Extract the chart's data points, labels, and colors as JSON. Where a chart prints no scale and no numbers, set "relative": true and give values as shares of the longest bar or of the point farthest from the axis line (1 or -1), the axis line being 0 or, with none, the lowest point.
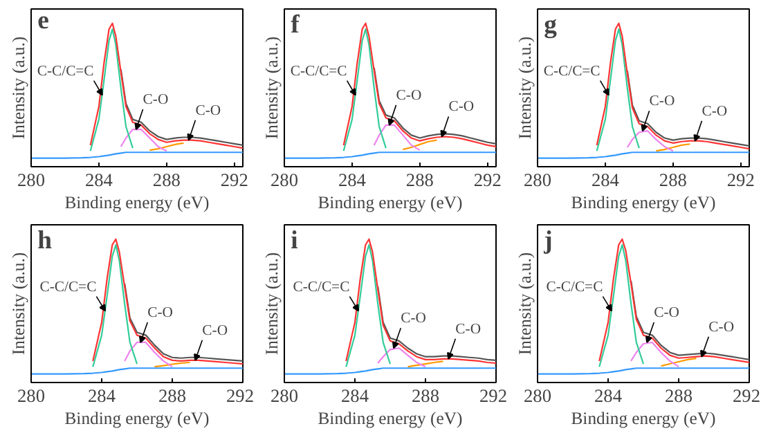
{
  "chart_data": [
    {
      "type": "line",
      "relative": true,
      "xlabel": "Binding energy (eV)",
      "ylabel": "Intensity (a.u.)",
      "xlim": [
        280,
        292.5
      ],
      "xticks": [
        280,
        284,
        288,
        292
      ],
      "tick_labels": "x",
      "grid": false,
      "x": [
        280,
        281,
        282,
        283,
        283.5,
        284,
        284.3,
        284.6,
        284.8,
        285,
        285.3,
        285.6,
        286,
        286.5,
        287,
        287.5,
        288,
        288.5,
        289,
        289.5,
        290,
        290.5,
        291,
        291.5,
        292,
        292.5
      ],
      "annotations": [
        "e",
        {
          "text": "C-C/C=C",
          "x": 284.2,
          "y": 0.5
        },
        {
          "text": "C-O",
          "x": 286.2,
          "y": 0.26
        },
        {
          "text": "C-O",
          "x": 289.3,
          "y": 0.185
        }
      ],
      "series": [
        {
          "color": "#ff9900",
          "values": [
            null,
            null,
            null,
            null,
            null,
            null,
            null,
            null,
            null,
            null,
            null,
            null,
            null,
            null,
            0.115,
            0.125,
            0.14,
            0.155,
            0.165,
            null,
            null,
            null,
            null,
            null,
            null,
            null
          ]
        },
        {
          "color": "#ee82ee",
          "values": [
            null,
            null,
            null,
            null,
            null,
            null,
            null,
            null,
            null,
            null,
            0.14,
            0.2,
            0.26,
            0.26,
            0.2,
            0.14,
            0.11,
            null,
            null,
            null,
            null,
            null,
            null,
            null,
            null,
            null
          ]
        },
        {
          "color": "#33cc99",
          "values": [
            null,
            null,
            null,
            null,
            0.11,
            0.33,
            0.6,
            0.88,
            0.96,
            0.85,
            0.55,
            0.28,
            0.13,
            null,
            null,
            null,
            null,
            null,
            null,
            null,
            null,
            null,
            null,
            null,
            null,
            null
          ]
        },
        {
          "color": "#555555",
          "values": [
            null,
            null,
            null,
            null,
            null,
            null,
            null,
            null,
            null,
            null,
            0.68,
            0.44,
            0.33,
            0.31,
            0.25,
            0.21,
            0.19,
            0.2,
            0.205,
            0.205,
            0.2,
            0.19,
            0.18,
            0.17,
            0.16,
            0.15
          ]
        },
        {
          "color": "#ff3333",
          "values": [
            null,
            null,
            null,
            null,
            0.15,
            0.42,
            0.72,
            0.96,
            1.0,
            0.91,
            0.66,
            0.42,
            0.31,
            0.29,
            0.23,
            0.19,
            0.17,
            0.18,
            0.185,
            0.185,
            0.18,
            0.17,
            0.16,
            0.15,
            0.14,
            0.13
          ]
        },
        {
          "color": "#3399ff",
          "values": [
            0.06,
            0.06,
            0.06,
            0.062,
            0.065,
            0.07,
            0.075,
            0.08,
            0.085,
            0.09,
            0.095,
            0.1,
            0.1,
            0.1,
            0.1,
            0.1,
            0.1,
            0.1,
            0.1,
            0.1,
            0.1,
            0.1,
            0.1,
            0.1,
            0.1,
            0.1
          ]
        }
      ]
    },
    {
      "type": "line",
      "relative": true,
      "xlabel": "Binding energy (eV)",
      "ylabel": "Intensity (a.u.)",
      "xlim": [
        280,
        292.5
      ],
      "xticks": [
        280,
        284,
        288,
        292
      ],
      "tick_labels": "x",
      "grid": false,
      "x": [
        280,
        281,
        282,
        283,
        283.5,
        284,
        284.3,
        284.6,
        284.8,
        285,
        285.3,
        285.6,
        286,
        286.5,
        287,
        287.5,
        288,
        288.5,
        289,
        289.5,
        290,
        290.5,
        291,
        291.5,
        292,
        292.5
      ],
      "annotations": [
        "f",
        {
          "text": "C-C/C=C",
          "x": 284.2,
          "y": 0.5
        },
        {
          "text": "C-O",
          "x": 286.2,
          "y": 0.29
        },
        {
          "text": "C-O",
          "x": 289.3,
          "y": 0.21
        }
      ],
      "series": [
        {
          "color": "#ff9900",
          "values": [
            null,
            null,
            null,
            null,
            null,
            null,
            null,
            null,
            null,
            null,
            null,
            null,
            null,
            null,
            0.12,
            0.135,
            0.155,
            0.175,
            0.185,
            null,
            null,
            null,
            null,
            null,
            null,
            null
          ]
        },
        {
          "color": "#ee82ee",
          "values": [
            null,
            null,
            null,
            null,
            null,
            null,
            null,
            null,
            null,
            null,
            0.15,
            0.22,
            0.29,
            0.29,
            0.22,
            0.15,
            0.115,
            null,
            null,
            null,
            null,
            null,
            null,
            null,
            null,
            null
          ]
        },
        {
          "color": "#33cc99",
          "values": [
            null,
            null,
            null,
            null,
            0.11,
            0.33,
            0.6,
            0.88,
            0.96,
            0.85,
            0.55,
            0.28,
            0.13,
            null,
            null,
            null,
            null,
            null,
            null,
            null,
            null,
            null,
            null,
            null,
            null,
            null
          ]
        },
        {
          "color": "#555555",
          "values": [
            null,
            null,
            null,
            null,
            null,
            null,
            null,
            null,
            null,
            null,
            0.69,
            0.46,
            0.36,
            0.34,
            0.27,
            0.22,
            0.2,
            0.215,
            0.225,
            0.23,
            0.225,
            0.215,
            0.2,
            0.185,
            0.17,
            0.16
          ]
        },
        {
          "color": "#ff3333",
          "values": [
            null,
            null,
            null,
            null,
            0.15,
            0.42,
            0.72,
            0.96,
            1.0,
            0.91,
            0.67,
            0.44,
            0.34,
            0.32,
            0.25,
            0.2,
            0.18,
            0.195,
            0.205,
            0.21,
            0.205,
            0.195,
            0.18,
            0.165,
            0.15,
            0.14
          ]
        },
        {
          "color": "#3399ff",
          "values": [
            0.06,
            0.06,
            0.06,
            0.062,
            0.065,
            0.07,
            0.075,
            0.08,
            0.085,
            0.09,
            0.095,
            0.1,
            0.1,
            0.1,
            0.1,
            0.1,
            0.1,
            0.1,
            0.1,
            0.1,
            0.1,
            0.1,
            0.1,
            0.1,
            0.1,
            0.1
          ]
        }
      ]
    },
    {
      "type": "line",
      "relative": true,
      "xlabel": "Binding energy (eV)",
      "ylabel": "Intensity (a.u.)",
      "xlim": [
        280,
        292.5
      ],
      "xticks": [
        280,
        284,
        288,
        292
      ],
      "tick_labels": "x",
      "grid": false,
      "x": [
        280,
        281,
        282,
        283,
        283.5,
        284,
        284.3,
        284.6,
        284.8,
        285,
        285.3,
        285.6,
        286,
        286.5,
        287,
        287.5,
        288,
        288.5,
        289,
        289.5,
        290,
        290.5,
        291,
        291.5,
        292,
        292.5
      ],
      "annotations": [
        "g",
        {
          "text": "C-C/C=C",
          "x": 284.2,
          "y": 0.5
        },
        {
          "text": "C-O",
          "x": 286.2,
          "y": 0.25
        },
        {
          "text": "C-O",
          "x": 289.3,
          "y": 0.18
        }
      ],
      "series": [
        {
          "color": "#ff9900",
          "values": [
            null,
            null,
            null,
            null,
            null,
            null,
            null,
            null,
            null,
            null,
            null,
            null,
            null,
            null,
            0.11,
            0.12,
            0.135,
            0.15,
            0.158,
            null,
            null,
            null,
            null,
            null,
            null,
            null
          ]
        },
        {
          "color": "#ee82ee",
          "values": [
            null,
            null,
            null,
            null,
            null,
            null,
            null,
            null,
            null,
            null,
            0.135,
            0.19,
            0.24,
            0.25,
            0.19,
            0.14,
            0.11,
            null,
            null,
            null,
            null,
            null,
            null,
            null,
            null,
            null
          ]
        },
        {
          "color": "#33cc99",
          "values": [
            null,
            null,
            null,
            null,
            0.11,
            0.33,
            0.6,
            0.88,
            0.96,
            0.85,
            0.55,
            0.28,
            0.13,
            null,
            null,
            null,
            null,
            null,
            null,
            null,
            null,
            null,
            null,
            null,
            null,
            null
          ]
        },
        {
          "color": "#555555",
          "values": [
            null,
            null,
            null,
            null,
            null,
            null,
            null,
            null,
            null,
            null,
            0.67,
            0.43,
            0.32,
            0.3,
            0.24,
            0.2,
            0.185,
            0.195,
            0.2,
            0.2,
            0.195,
            0.185,
            0.175,
            0.165,
            0.155,
            0.145
          ]
        },
        {
          "color": "#ff3333",
          "values": [
            null,
            null,
            null,
            null,
            0.15,
            0.42,
            0.72,
            0.96,
            1.0,
            0.91,
            0.65,
            0.41,
            0.3,
            0.28,
            0.22,
            0.18,
            0.165,
            0.175,
            0.18,
            0.18,
            0.175,
            0.165,
            0.155,
            0.145,
            0.135,
            0.125
          ]
        },
        {
          "color": "#3399ff",
          "values": [
            0.06,
            0.06,
            0.06,
            0.062,
            0.065,
            0.07,
            0.075,
            0.08,
            0.085,
            0.09,
            0.095,
            0.1,
            0.1,
            0.1,
            0.1,
            0.1,
            0.1,
            0.1,
            0.1,
            0.1,
            0.1,
            0.1,
            0.1,
            0.1,
            0.1,
            0.1
          ]
        }
      ]
    },
    {
      "type": "line",
      "relative": true,
      "xlabel": "Binding energy (eV)",
      "ylabel": "Intensity (a.u.)",
      "xlim": [
        280,
        292
      ],
      "xticks": [
        280,
        284,
        288,
        292
      ],
      "tick_labels": "x",
      "grid": false,
      "x": [
        280,
        281,
        282,
        283,
        283.5,
        284,
        284.3,
        284.6,
        284.8,
        285,
        285.3,
        285.6,
        286,
        286.5,
        287,
        287.5,
        288,
        288.5,
        289,
        289.5,
        290,
        290.5,
        291,
        291.5,
        292
      ],
      "annotations": [
        "h",
        {
          "text": "C-C/C=C",
          "x": 284.2,
          "y": 0.5
        },
        {
          "text": "C-O",
          "x": 286.2,
          "y": 0.28
        },
        {
          "text": "C-O",
          "x": 289.3,
          "y": 0.155
        }
      ],
      "series": [
        {
          "color": "#ff9900",
          "values": [
            null,
            null,
            null,
            null,
            null,
            null,
            null,
            null,
            null,
            null,
            null,
            null,
            null,
            null,
            0.11,
            0.118,
            0.128,
            0.135,
            0.14,
            null,
            null,
            null,
            null,
            null,
            null
          ]
        },
        {
          "color": "#ee82ee",
          "values": [
            null,
            null,
            null,
            null,
            null,
            null,
            null,
            null,
            null,
            null,
            0.15,
            0.22,
            0.28,
            0.28,
            0.21,
            0.15,
            0.11,
            null,
            null,
            null,
            null,
            null,
            null,
            null,
            null
          ]
        },
        {
          "color": "#33cc99",
          "values": [
            null,
            null,
            null,
            null,
            0.11,
            0.33,
            0.6,
            0.88,
            0.96,
            0.85,
            0.55,
            0.28,
            0.13,
            null,
            null,
            null,
            null,
            null,
            null,
            null,
            null,
            null,
            null,
            null,
            null
          ]
        },
        {
          "color": "#555555",
          "values": [
            null,
            null,
            null,
            null,
            null,
            null,
            null,
            null,
            null,
            null,
            0.69,
            0.45,
            0.35,
            0.33,
            0.26,
            0.2,
            0.175,
            0.17,
            0.175,
            0.175,
            0.17,
            0.165,
            0.16,
            0.155,
            0.15
          ]
        },
        {
          "color": "#ff3333",
          "values": [
            null,
            null,
            null,
            null,
            0.15,
            0.42,
            0.72,
            0.96,
            1.0,
            0.91,
            0.67,
            0.43,
            0.33,
            0.31,
            0.24,
            0.18,
            0.155,
            0.15,
            0.155,
            0.155,
            0.15,
            0.145,
            0.14,
            0.135,
            0.13
          ]
        },
        {
          "color": "#3399ff",
          "values": [
            0.06,
            0.06,
            0.06,
            0.062,
            0.065,
            0.07,
            0.075,
            0.08,
            0.085,
            0.09,
            0.095,
            0.1,
            0.1,
            0.1,
            0.1,
            0.1,
            0.1,
            0.1,
            0.1,
            0.1,
            0.1,
            0.1,
            0.1,
            0.1,
            0.1
          ]
        }
      ]
    },
    {
      "type": "line",
      "relative": true,
      "xlabel": "Binding energy (eV)",
      "ylabel": "Intensity (a.u.)",
      "xlim": [
        280,
        292
      ],
      "xticks": [
        280,
        284,
        288,
        292
      ],
      "tick_labels": "x",
      "grid": false,
      "x": [
        280,
        281,
        282,
        283,
        283.5,
        284,
        284.3,
        284.6,
        284.8,
        285,
        285.3,
        285.6,
        286,
        286.5,
        287,
        287.5,
        288,
        288.5,
        289,
        289.5,
        290,
        290.5,
        291,
        291.5,
        292
      ],
      "annotations": [
        "i",
        {
          "text": "C-C/C=C",
          "x": 284.2,
          "y": 0.5
        },
        {
          "text": "C-O",
          "x": 286.2,
          "y": 0.24
        },
        {
          "text": "C-O",
          "x": 289.3,
          "y": 0.165
        }
      ],
      "series": [
        {
          "color": "#ff9900",
          "values": [
            null,
            null,
            null,
            null,
            null,
            null,
            null,
            null,
            null,
            null,
            null,
            null,
            null,
            null,
            0.11,
            0.12,
            0.13,
            0.14,
            0.148,
            null,
            null,
            null,
            null,
            null,
            null
          ]
        },
        {
          "color": "#ee82ee",
          "values": [
            null,
            null,
            null,
            null,
            null,
            null,
            null,
            null,
            null,
            null,
            0.135,
            0.18,
            0.23,
            0.24,
            0.19,
            0.14,
            0.11,
            null,
            null,
            null,
            null,
            null,
            null,
            null,
            null
          ]
        },
        {
          "color": "#33cc99",
          "values": [
            null,
            null,
            null,
            null,
            0.11,
            0.33,
            0.6,
            0.88,
            0.96,
            0.85,
            0.55,
            0.28,
            0.13,
            null,
            null,
            null,
            null,
            null,
            null,
            null,
            null,
            null,
            null,
            null,
            null
          ]
        },
        {
          "color": "#555555",
          "values": [
            null,
            null,
            null,
            null,
            null,
            null,
            null,
            null,
            null,
            null,
            0.67,
            0.42,
            0.31,
            0.29,
            0.24,
            0.2,
            0.18,
            0.18,
            0.185,
            0.185,
            0.18,
            0.175,
            0.17,
            0.16,
            0.155
          ]
        },
        {
          "color": "#ff3333",
          "values": [
            null,
            null,
            null,
            null,
            0.15,
            0.42,
            0.72,
            0.96,
            1.0,
            0.91,
            0.65,
            0.4,
            0.29,
            0.27,
            0.22,
            0.18,
            0.16,
            0.16,
            0.165,
            0.165,
            0.16,
            0.155,
            0.15,
            0.14,
            0.135
          ]
        },
        {
          "color": "#3399ff",
          "values": [
            0.06,
            0.06,
            0.06,
            0.062,
            0.065,
            0.07,
            0.075,
            0.08,
            0.085,
            0.09,
            0.095,
            0.1,
            0.1,
            0.1,
            0.1,
            0.1,
            0.1,
            0.1,
            0.1,
            0.1,
            0.1,
            0.1,
            0.1,
            0.1,
            0.1
          ]
        }
      ]
    },
    {
      "type": "line",
      "relative": true,
      "xlabel": "Binding energy (eV)",
      "ylabel": "Intensity (a.u.)",
      "xlim": [
        280,
        292
      ],
      "xticks": [
        280,
        284,
        288,
        292
      ],
      "tick_labels": "x",
      "grid": false,
      "x": [
        280,
        281,
        282,
        283,
        283.5,
        284,
        284.3,
        284.6,
        284.8,
        285,
        285.3,
        285.6,
        286,
        286.5,
        287,
        287.5,
        288,
        288.5,
        289,
        289.5,
        290,
        290.5,
        291,
        291.5,
        292
      ],
      "annotations": [
        "j",
        {
          "text": "C-C/C=C",
          "x": 284.2,
          "y": 0.5
        },
        {
          "text": "C-O",
          "x": 286.2,
          "y": 0.28
        },
        {
          "text": "C-O",
          "x": 289.3,
          "y": 0.18
        }
      ],
      "series": [
        {
          "color": "#ff9900",
          "values": [
            null,
            null,
            null,
            null,
            null,
            null,
            null,
            null,
            null,
            null,
            null,
            null,
            null,
            null,
            0.115,
            0.13,
            0.145,
            0.16,
            0.168,
            null,
            null,
            null,
            null,
            null,
            null
          ]
        },
        {
          "color": "#ee82ee",
          "values": [
            null,
            null,
            null,
            null,
            null,
            null,
            null,
            null,
            null,
            null,
            0.15,
            0.21,
            0.27,
            0.28,
            0.21,
            0.15,
            0.11,
            null,
            null,
            null,
            null,
            null,
            null,
            null,
            null
          ]
        },
        {
          "color": "#33cc99",
          "values": [
            null,
            null,
            null,
            null,
            0.11,
            0.33,
            0.6,
            0.88,
            0.96,
            0.85,
            0.55,
            0.28,
            0.13,
            null,
            null,
            null,
            null,
            null,
            null,
            null,
            null,
            null,
            null,
            null,
            null
          ]
        },
        {
          "color": "#555555",
          "values": [
            null,
            null,
            null,
            null,
            null,
            null,
            null,
            null,
            null,
            null,
            0.71,
            0.46,
            0.35,
            0.33,
            0.26,
            0.21,
            0.19,
            0.195,
            0.2,
            0.205,
            0.2,
            0.19,
            0.18,
            0.17,
            0.16
          ]
        },
        {
          "color": "#ff3333",
          "values": [
            null,
            null,
            null,
            null,
            0.15,
            0.42,
            0.72,
            0.96,
            1.0,
            0.92,
            0.69,
            0.44,
            0.33,
            0.31,
            0.24,
            0.19,
            0.17,
            0.175,
            0.18,
            0.185,
            0.18,
            0.17,
            0.16,
            0.15,
            0.14
          ]
        },
        {
          "color": "#3399ff",
          "values": [
            0.06,
            0.06,
            0.06,
            0.062,
            0.065,
            0.07,
            0.075,
            0.08,
            0.085,
            0.09,
            0.095,
            0.1,
            0.1,
            0.1,
            0.1,
            0.1,
            0.1,
            0.1,
            0.1,
            0.1,
            0.1,
            0.1,
            0.1,
            0.1,
            0.1
          ]
        }
      ]
    }
  ]
}
